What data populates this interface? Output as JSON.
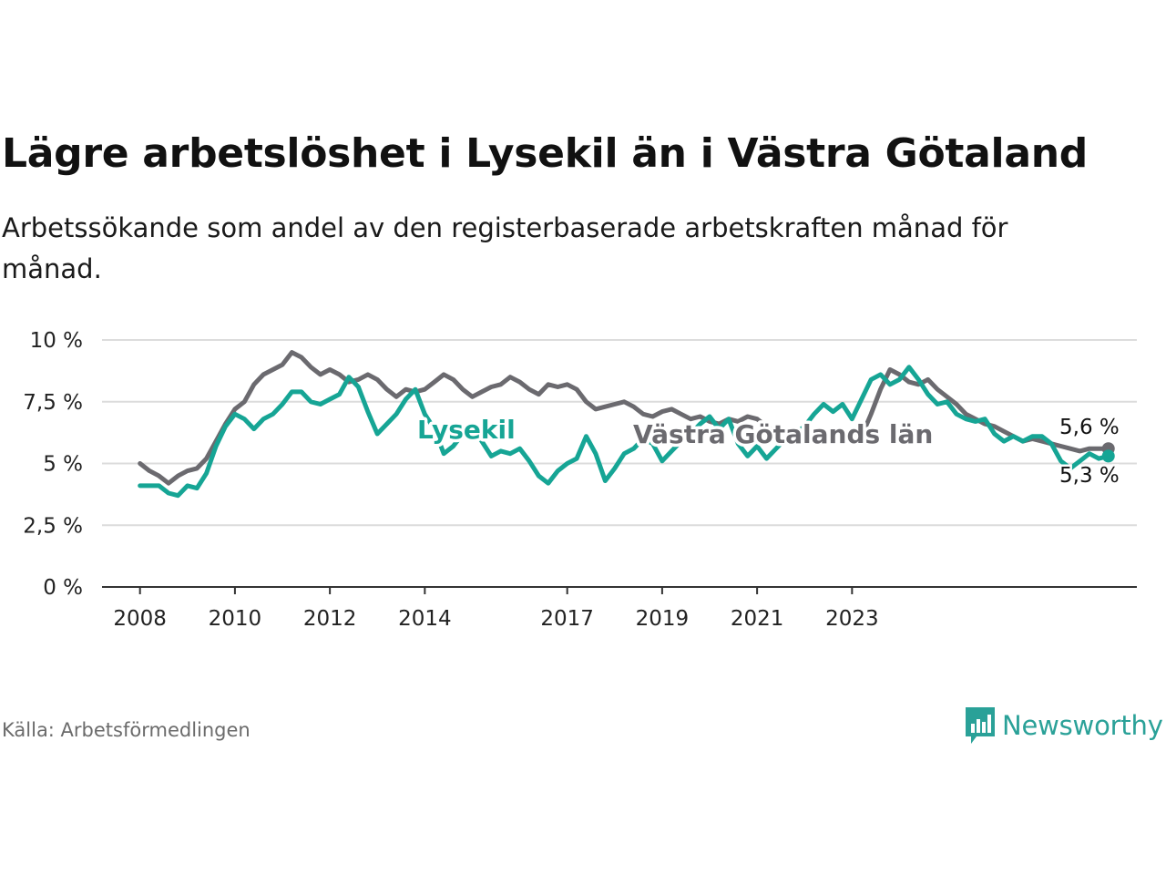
{
  "title": "Lägre arbetslöshet i Lysekil än i Västra Götaland",
  "subtitle": "Arbetssökande som andel av den registerbaserade arbetskraften månad för månad.",
  "source": "Källa: Arbetsförmedlingen",
  "brand": {
    "name": "Newsworthy",
    "color": "#2aa198"
  },
  "chart_data": {
    "type": "line",
    "x_unit": "year",
    "ylim": [
      0,
      10
    ],
    "yticks": [
      0,
      2.5,
      5,
      7.5,
      10
    ],
    "ytick_labels": [
      "0 %",
      "2,5 %",
      "5 %",
      "7,5 %",
      "10 %"
    ],
    "xticks": [
      2008,
      2010,
      2012,
      2014,
      2017,
      2019,
      2021,
      2023
    ],
    "xtick_labels": [
      "2008",
      "2010",
      "2012",
      "2014",
      "2017",
      "2019",
      "2021",
      "2023"
    ],
    "grid": true,
    "series": [
      {
        "name": "Västra Götalands län",
        "label": "Västra Götalands län",
        "color": "#6b6a6f",
        "end_label": "5,6 %",
        "points": [
          [
            2008.0,
            5.0
          ],
          [
            2008.2,
            4.7
          ],
          [
            2008.4,
            4.5
          ],
          [
            2008.6,
            4.2
          ],
          [
            2008.8,
            4.5
          ],
          [
            2009.0,
            4.7
          ],
          [
            2009.2,
            4.8
          ],
          [
            2009.4,
            5.2
          ],
          [
            2009.6,
            5.9
          ],
          [
            2009.8,
            6.6
          ],
          [
            2010.0,
            7.2
          ],
          [
            2010.2,
            7.5
          ],
          [
            2010.4,
            8.2
          ],
          [
            2010.6,
            8.6
          ],
          [
            2010.8,
            8.8
          ],
          [
            2011.0,
            9.0
          ],
          [
            2011.2,
            9.5
          ],
          [
            2011.4,
            9.3
          ],
          [
            2011.6,
            8.9
          ],
          [
            2011.8,
            8.6
          ],
          [
            2012.0,
            8.8
          ],
          [
            2012.2,
            8.6
          ],
          [
            2012.4,
            8.3
          ],
          [
            2012.6,
            8.4
          ],
          [
            2012.8,
            8.6
          ],
          [
            2013.0,
            8.4
          ],
          [
            2013.2,
            8.0
          ],
          [
            2013.4,
            7.7
          ],
          [
            2013.6,
            8.0
          ],
          [
            2013.8,
            7.9
          ],
          [
            2014.0,
            8.0
          ],
          [
            2014.2,
            8.3
          ],
          [
            2014.4,
            8.6
          ],
          [
            2014.6,
            8.4
          ],
          [
            2014.8,
            8.0
          ],
          [
            2015.0,
            7.7
          ],
          [
            2015.2,
            7.9
          ],
          [
            2015.4,
            8.1
          ],
          [
            2015.6,
            8.2
          ],
          [
            2015.8,
            8.5
          ],
          [
            2016.0,
            8.3
          ],
          [
            2016.2,
            8.0
          ],
          [
            2016.4,
            7.8
          ],
          [
            2016.6,
            8.2
          ],
          [
            2016.8,
            8.1
          ],
          [
            2017.0,
            8.2
          ],
          [
            2017.2,
            8.0
          ],
          [
            2017.4,
            7.5
          ],
          [
            2017.6,
            7.2
          ],
          [
            2017.8,
            7.3
          ],
          [
            2018.0,
            7.4
          ],
          [
            2018.2,
            7.5
          ],
          [
            2018.4,
            7.3
          ],
          [
            2018.6,
            7.0
          ],
          [
            2018.8,
            6.9
          ],
          [
            2019.0,
            7.1
          ],
          [
            2019.2,
            7.2
          ],
          [
            2019.4,
            7.0
          ],
          [
            2019.6,
            6.8
          ],
          [
            2019.8,
            6.9
          ],
          [
            2020.0,
            6.7
          ],
          [
            2020.2,
            6.6
          ],
          [
            2020.4,
            6.8
          ],
          [
            2020.6,
            6.7
          ],
          [
            2020.8,
            6.9
          ],
          [
            2021.0,
            6.8
          ],
          [
            2021.2,
            6.5
          ],
          [
            2021.4,
            6.3
          ],
          [
            2021.6,
            6.2
          ],
          [
            2021.8,
            6.4
          ],
          [
            2022.0,
            6.3
          ],
          [
            2022.2,
            6.1
          ],
          [
            2022.4,
            6.0
          ],
          [
            2022.6,
            6.2
          ],
          [
            2022.8,
            5.9
          ],
          [
            2023.0,
            6.0
          ],
          [
            2023.2,
            6.1
          ],
          [
            2023.4,
            7.0
          ],
          [
            2023.6,
            8.0
          ],
          [
            2023.8,
            8.8
          ],
          [
            2024.0,
            8.6
          ],
          [
            2024.2,
            8.3
          ],
          [
            2024.4,
            8.2
          ],
          [
            2024.6,
            8.4
          ],
          [
            2024.8,
            8.0
          ],
          [
            2025.0,
            7.7
          ],
          [
            2025.2,
            7.4
          ],
          [
            2025.4,
            7.0
          ],
          [
            2025.6,
            6.8
          ],
          [
            2025.8,
            6.6
          ],
          [
            2026.0,
            6.5
          ],
          [
            2026.2,
            6.3
          ],
          [
            2026.4,
            6.1
          ],
          [
            2026.6,
            5.9
          ],
          [
            2026.8,
            6.0
          ],
          [
            2027.0,
            5.9
          ],
          [
            2027.2,
            5.8
          ],
          [
            2027.4,
            5.7
          ],
          [
            2027.6,
            5.6
          ],
          [
            2027.8,
            5.5
          ],
          [
            2028.0,
            5.6
          ],
          [
            2028.2,
            5.6
          ],
          [
            2028.4,
            5.6
          ]
        ]
      },
      {
        "name": "Lysekil",
        "label": "Lysekil",
        "color": "#16a595",
        "end_label": "5,3 %",
        "points": [
          [
            2008.0,
            4.1
          ],
          [
            2008.2,
            4.1
          ],
          [
            2008.4,
            4.1
          ],
          [
            2008.6,
            3.8
          ],
          [
            2008.8,
            3.7
          ],
          [
            2009.0,
            4.1
          ],
          [
            2009.2,
            4.0
          ],
          [
            2009.4,
            4.6
          ],
          [
            2009.6,
            5.7
          ],
          [
            2009.8,
            6.5
          ],
          [
            2010.0,
            7.0
          ],
          [
            2010.2,
            6.8
          ],
          [
            2010.4,
            6.4
          ],
          [
            2010.6,
            6.8
          ],
          [
            2010.8,
            7.0
          ],
          [
            2011.0,
            7.4
          ],
          [
            2011.2,
            7.9
          ],
          [
            2011.4,
            7.9
          ],
          [
            2011.6,
            7.5
          ],
          [
            2011.8,
            7.4
          ],
          [
            2012.0,
            7.6
          ],
          [
            2012.2,
            7.8
          ],
          [
            2012.4,
            8.5
          ],
          [
            2012.6,
            8.1
          ],
          [
            2012.8,
            7.1
          ],
          [
            2013.0,
            6.2
          ],
          [
            2013.2,
            6.6
          ],
          [
            2013.4,
            7.0
          ],
          [
            2013.6,
            7.6
          ],
          [
            2013.8,
            8.0
          ],
          [
            2014.0,
            7.0
          ],
          [
            2014.2,
            6.4
          ],
          [
            2014.4,
            5.4
          ],
          [
            2014.6,
            5.7
          ],
          [
            2014.8,
            6.2
          ],
          [
            2015.0,
            6.5
          ],
          [
            2015.2,
            5.9
          ],
          [
            2015.4,
            5.3
          ],
          [
            2015.6,
            5.5
          ],
          [
            2015.8,
            5.4
          ],
          [
            2016.0,
            5.6
          ],
          [
            2016.2,
            5.1
          ],
          [
            2016.4,
            4.5
          ],
          [
            2016.6,
            4.2
          ],
          [
            2016.8,
            4.7
          ],
          [
            2017.0,
            5.0
          ],
          [
            2017.2,
            5.2
          ],
          [
            2017.4,
            6.1
          ],
          [
            2017.6,
            5.4
          ],
          [
            2017.8,
            4.3
          ],
          [
            2018.0,
            4.8
          ],
          [
            2018.2,
            5.4
          ],
          [
            2018.4,
            5.6
          ],
          [
            2018.6,
            6.0
          ],
          [
            2018.8,
            5.8
          ],
          [
            2019.0,
            5.1
          ],
          [
            2019.2,
            5.5
          ],
          [
            2019.4,
            5.9
          ],
          [
            2019.6,
            6.2
          ],
          [
            2019.8,
            6.6
          ],
          [
            2020.0,
            6.9
          ],
          [
            2020.2,
            6.4
          ],
          [
            2020.4,
            6.8
          ],
          [
            2020.6,
            5.8
          ],
          [
            2020.8,
            5.3
          ],
          [
            2021.0,
            5.7
          ],
          [
            2021.2,
            5.2
          ],
          [
            2021.4,
            5.6
          ],
          [
            2021.6,
            6.0
          ],
          [
            2021.8,
            6.2
          ],
          [
            2022.0,
            6.5
          ],
          [
            2022.2,
            7.0
          ],
          [
            2022.4,
            7.4
          ],
          [
            2022.6,
            7.1
          ],
          [
            2022.8,
            7.4
          ],
          [
            2023.0,
            6.8
          ],
          [
            2023.2,
            7.6
          ],
          [
            2023.4,
            8.4
          ],
          [
            2023.6,
            8.6
          ],
          [
            2023.8,
            8.2
          ],
          [
            2024.0,
            8.4
          ],
          [
            2024.2,
            8.9
          ],
          [
            2024.4,
            8.4
          ],
          [
            2024.6,
            7.8
          ],
          [
            2024.8,
            7.4
          ],
          [
            2025.0,
            7.5
          ],
          [
            2025.2,
            7.0
          ],
          [
            2025.4,
            6.8
          ],
          [
            2025.6,
            6.7
          ],
          [
            2025.8,
            6.8
          ],
          [
            2026.0,
            6.2
          ],
          [
            2026.2,
            5.9
          ],
          [
            2026.4,
            6.1
          ],
          [
            2026.6,
            5.9
          ],
          [
            2026.8,
            6.1
          ],
          [
            2027.0,
            6.1
          ],
          [
            2027.2,
            5.8
          ],
          [
            2027.4,
            5.1
          ],
          [
            2027.6,
            4.8
          ],
          [
            2027.8,
            5.1
          ],
          [
            2028.0,
            5.4
          ],
          [
            2028.2,
            5.2
          ],
          [
            2028.4,
            5.3
          ]
        ]
      }
    ]
  }
}
